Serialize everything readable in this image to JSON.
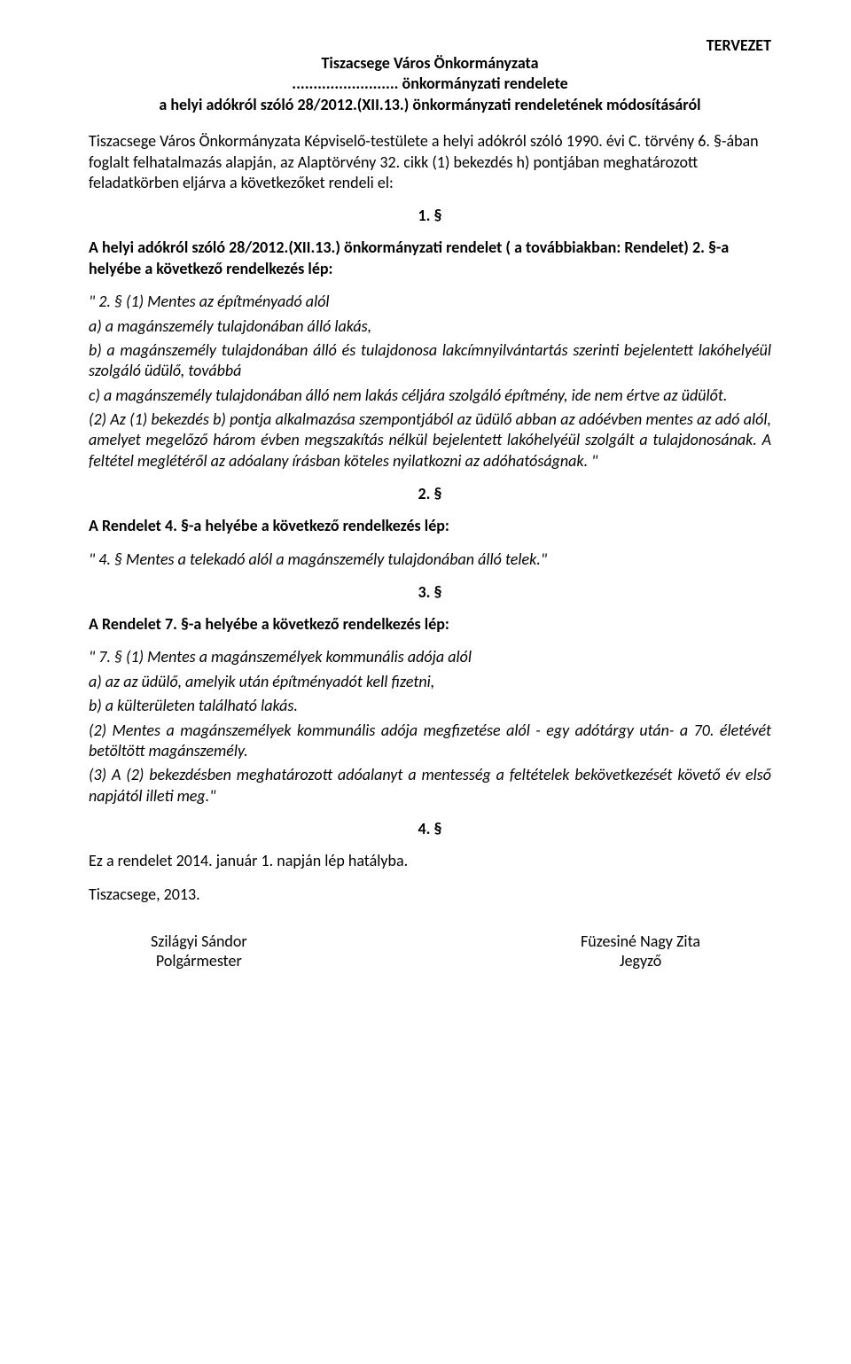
{
  "topRight": "TERVEZET",
  "header": {
    "line1": "Tiszacsege Város Önkormányzata",
    "line2": "......................... önkormányzati rendelete",
    "line3": "a helyi adókról szóló 28/2012.(XII.13.) önkormányzati rendeletének módosításáról"
  },
  "intro": "Tiszacsege Város Önkormányzata Képviselő-testülete a helyi adókról szóló 1990. évi C. törvény 6. §-ában  foglalt felhatalmazás alapján, az Alaptörvény 32. cikk (1) bekezdés h) pontjában meghatározott feladatkörben eljárva a következőket rendeli el:",
  "sec1": {
    "num": "1. §",
    "bold": "A helyi adókról szóló 28/2012.(XII.13.) önkormányzati rendelet ( a továbbiakban: Rendelet) 2. §-a helyébe a következő rendelkezés lép:",
    "it1": "\" 2. § (1) Mentes az építményadó alól",
    "it2": "a) a  magánszemély tulajdonában álló lakás,",
    "it3": "b) a  magánszemély tulajdonában álló és tulajdonosa lakcímnyilvántartás szerinti  bejelentett lakóhelyéül szolgáló üdülő, továbbá",
    "it4": "c)  a  magánszemély tulajdonában álló nem lakás céljára szolgáló építmény, ide nem értve az üdülőt.",
    "it5": " (2) Az (1) bekezdés b) pontja alkalmazása szempontjából az üdülő abban az adóévben mentes az adó alól, amelyet megelőző három évben  megszakítás nélkül bejelentett lakóhelyéül szolgált a tulajdonosának. A feltétel meglétéről az adóalany írásban köteles nyilatkozni az adóhatóságnak. \""
  },
  "sec2": {
    "num": "2. §",
    "bold": "A  Rendelet 4. §-a helyébe a következő rendelkezés lép:",
    "it1": "\" 4. § Mentes a telekadó alól   a  magánszemély tulajdonában álló telek.\""
  },
  "sec3": {
    "num": "3. §",
    "bold": "A  Rendelet 7. §-a helyébe a következő rendelkezés lép:",
    "it1": "\" 7. § (1) Mentes a magánszemélyek kommunális adója alól",
    "it2": "a) az az üdülő,  amelyik után építményadót kell fizetni,",
    "it3": "b) a külterületen található lakás.",
    "it4": "(2) Mentes a magánszemélyek kommunális adója megfizetése alól - egy adótárgy után-  a 70. életévét betöltött magánszemély.",
    "it5": "(3) A (2) bekezdésben  meghatározott adóalanyt a mentesség a feltételek bekövetkezését követő év első napjától illeti meg.\""
  },
  "sec4": {
    "num": "4. §",
    "effective": "Ez a rendelet 2014. január 1. napján lép hatályba."
  },
  "place": "Tiszacsege, 2013.",
  "sig": {
    "left1": "Szilágyi Sándor",
    "left2": "Polgármester",
    "right1": "Füzesiné Nagy Zita",
    "right2": "Jegyző"
  }
}
